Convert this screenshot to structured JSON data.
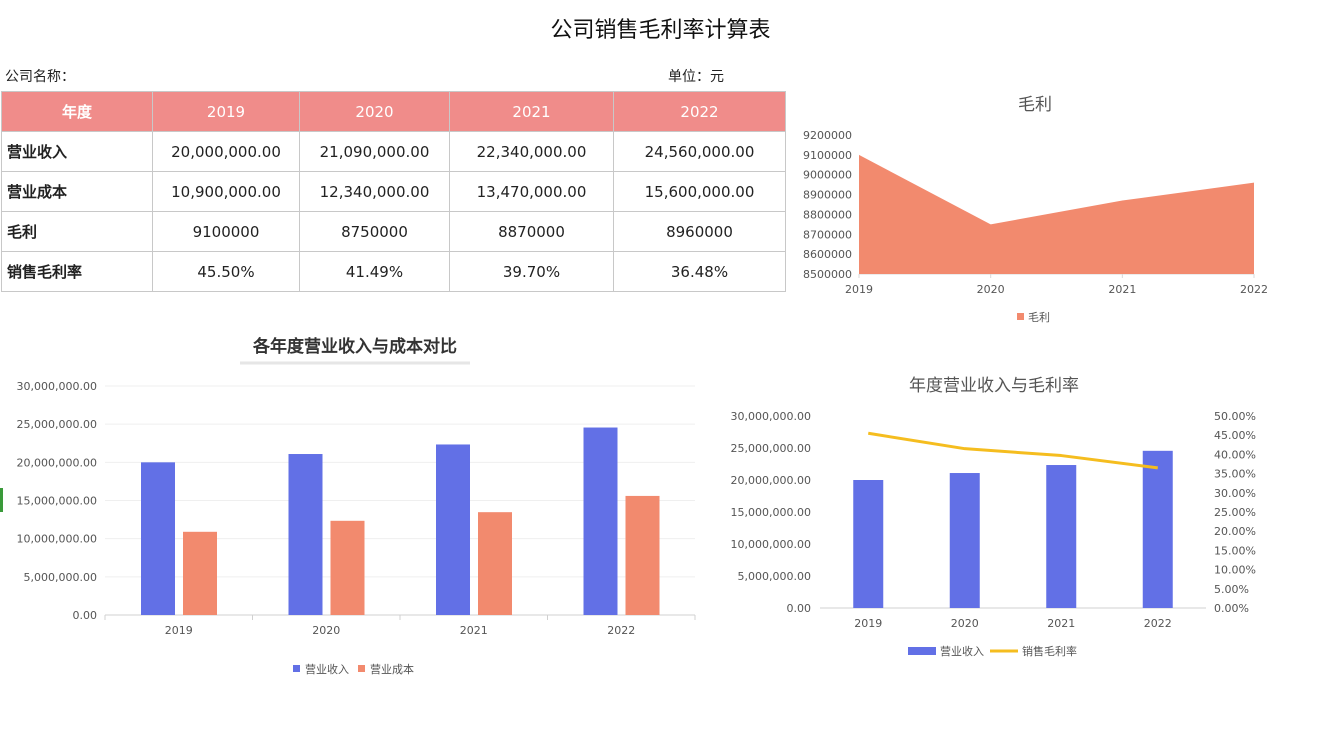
{
  "title": "公司销售毛利率计算表",
  "company_label": "公司名称：",
  "unit_label": "单位：元",
  "table": {
    "header": [
      "年度",
      "2019",
      "2020",
      "2021",
      "2022"
    ],
    "rows": [
      {
        "label": "营业收入",
        "values": [
          "20,000,000.00",
          "21,090,000.00",
          "22,340,000.00",
          "24,560,000.00"
        ]
      },
      {
        "label": "营业成本",
        "values": [
          "10,900,000.00",
          "12,340,000.00",
          "13,470,000.00",
          "15,600,000.00"
        ]
      },
      {
        "label": "毛利",
        "values": [
          "9100000",
          "8750000",
          "8870000",
          "8960000"
        ]
      },
      {
        "label": "销售毛利率",
        "values": [
          "45.50%",
          "41.49%",
          "39.70%",
          "36.48%"
        ]
      }
    ]
  },
  "colors": {
    "header_bg": "#f08c8a",
    "revenue": "#6270e6",
    "cost": "#f28a6e",
    "rate": "#f5bd1f"
  },
  "chart_data": [
    {
      "type": "area",
      "title": "毛利",
      "categories": [
        "2019",
        "2020",
        "2021",
        "2022"
      ],
      "series": [
        {
          "name": "毛利",
          "values": [
            9100000,
            8750000,
            8870000,
            8960000
          ]
        }
      ],
      "ylim": [
        8500000,
        9200000
      ],
      "yticks": [
        "9200000",
        "9100000",
        "9000000",
        "8900000",
        "8800000",
        "8700000",
        "8600000",
        "8500000"
      ],
      "legend": "bottom"
    },
    {
      "type": "bar",
      "title": "各年度营业收入与成本对比",
      "categories": [
        "2019",
        "2020",
        "2021",
        "2022"
      ],
      "series": [
        {
          "name": "营业收入",
          "values": [
            20000000,
            21090000,
            22340000,
            24560000
          ]
        },
        {
          "name": "营业成本",
          "values": [
            10900000,
            12340000,
            13470000,
            15600000
          ]
        }
      ],
      "ylim": [
        0,
        30000000
      ],
      "yticks": [
        "30,000,000.00",
        "25,000,000.00",
        "20,000,000.00",
        "15,000,000.00",
        "10,000,000.00",
        "5,000,000.00",
        "0.00"
      ],
      "legend": "bottom"
    },
    {
      "type": "bar",
      "title": "年度营业收入与毛利率",
      "categories": [
        "2019",
        "2020",
        "2021",
        "2022"
      ],
      "series": [
        {
          "name": "营业收入",
          "values": [
            20000000,
            21090000,
            22340000,
            24560000
          ]
        },
        {
          "name": "销售毛利率",
          "values": [
            45.5,
            41.49,
            39.7,
            36.48
          ]
        }
      ],
      "ylim": [
        0,
        30000000
      ],
      "y2lim": [
        0,
        50
      ],
      "yticks": [
        "30,000,000.00",
        "25,000,000.00",
        "20,000,000.00",
        "15,000,000.00",
        "10,000,000.00",
        "5,000,000.00",
        "0.00"
      ],
      "y2ticks": [
        "50.00%",
        "45.00%",
        "40.00%",
        "35.00%",
        "30.00%",
        "25.00%",
        "20.00%",
        "15.00%",
        "10.00%",
        "5.00%",
        "0.00%"
      ],
      "legend": "bottom"
    }
  ]
}
